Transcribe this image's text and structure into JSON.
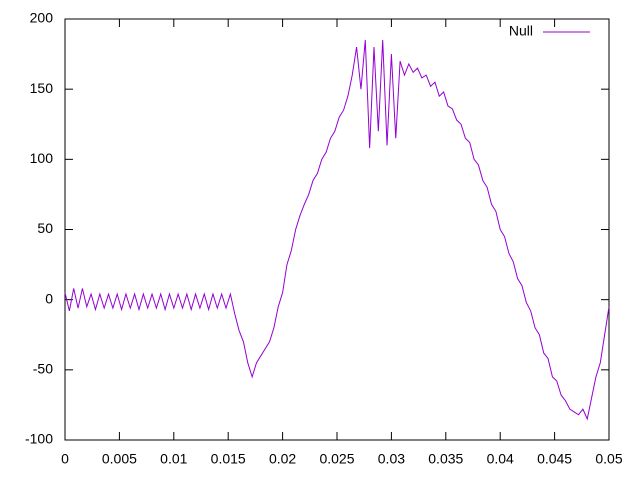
{
  "chart_data": {
    "type": "line",
    "xlim": [
      0,
      0.05
    ],
    "ylim": [
      -100,
      200
    ],
    "xticks": [
      0,
      0.005,
      0.01,
      0.015,
      0.02,
      0.025,
      0.03,
      0.035,
      0.04,
      0.045,
      0.05
    ],
    "yticks": [
      -100,
      -50,
      0,
      50,
      100,
      150,
      200
    ],
    "grid": false,
    "legend": "top-right",
    "x": [
      0,
      0.0004,
      0.0008,
      0.0012,
      0.0016,
      0.002,
      0.0024,
      0.0028,
      0.0032,
      0.0036,
      0.004,
      0.0044,
      0.0048,
      0.0052,
      0.0056,
      0.006,
      0.0064,
      0.0068,
      0.0072,
      0.0076,
      0.008,
      0.0084,
      0.0088,
      0.0092,
      0.0096,
      0.01,
      0.0104,
      0.0108,
      0.0112,
      0.0116,
      0.012,
      0.0124,
      0.0128,
      0.0132,
      0.0136,
      0.014,
      0.0144,
      0.0148,
      0.0152,
      0.0156,
      0.016,
      0.0164,
      0.0168,
      0.0172,
      0.0176,
      0.018,
      0.0184,
      0.0188,
      0.0192,
      0.0196,
      0.02,
      0.0204,
      0.0208,
      0.0212,
      0.0216,
      0.022,
      0.0224,
      0.0228,
      0.0232,
      0.0236,
      0.024,
      0.0244,
      0.0248,
      0.0252,
      0.0256,
      0.026,
      0.0264,
      0.0268,
      0.0272,
      0.0276,
      0.028,
      0.0284,
      0.0288,
      0.0292,
      0.0296,
      0.03,
      0.0304,
      0.0308,
      0.0312,
      0.0316,
      0.032,
      0.0324,
      0.0328,
      0.0332,
      0.0336,
      0.034,
      0.0344,
      0.0348,
      0.0352,
      0.0356,
      0.036,
      0.0364,
      0.0368,
      0.0372,
      0.0376,
      0.038,
      0.0384,
      0.0388,
      0.0392,
      0.0396,
      0.04,
      0.0404,
      0.0408,
      0.0412,
      0.0416,
      0.042,
      0.0424,
      0.0428,
      0.0432,
      0.0436,
      0.044,
      0.0444,
      0.0448,
      0.0452,
      0.0456,
      0.046,
      0.0464,
      0.0468,
      0.0472,
      0.0476,
      0.048,
      0.0484,
      0.0488,
      0.0492,
      0.0496,
      0.05
    ],
    "series": [
      {
        "name": "Null",
        "color": "#9400d3",
        "values": [
          5,
          -8,
          8,
          -6,
          8,
          -5,
          4,
          -7,
          4,
          -6,
          4,
          -6,
          4,
          -7,
          4,
          -6,
          4,
          -7,
          4,
          -6,
          4,
          -6,
          4,
          -7,
          4,
          -6,
          4,
          -6,
          4,
          -7,
          4,
          -6,
          4,
          -7,
          4,
          -6,
          4,
          -6,
          4,
          -10,
          -22,
          -30,
          -45,
          -55,
          -45,
          -40,
          -35,
          -30,
          -20,
          -5,
          5,
          25,
          35,
          50,
          60,
          68,
          75,
          85,
          90,
          100,
          105,
          115,
          120,
          130,
          135,
          145,
          160,
          180,
          150,
          185,
          108,
          180,
          120,
          185,
          110,
          175,
          115,
          170,
          160,
          168,
          162,
          165,
          158,
          160,
          152,
          155,
          145,
          148,
          138,
          136,
          128,
          125,
          115,
          112,
          100,
          96,
          85,
          80,
          68,
          63,
          50,
          45,
          33,
          27,
          15,
          10,
          -2,
          -8,
          -20,
          -25,
          -38,
          -42,
          -55,
          -58,
          -68,
          -72,
          -78,
          -80,
          -82,
          -78,
          -85,
          -70,
          -55,
          -45,
          -25,
          -5
        ]
      }
    ]
  }
}
